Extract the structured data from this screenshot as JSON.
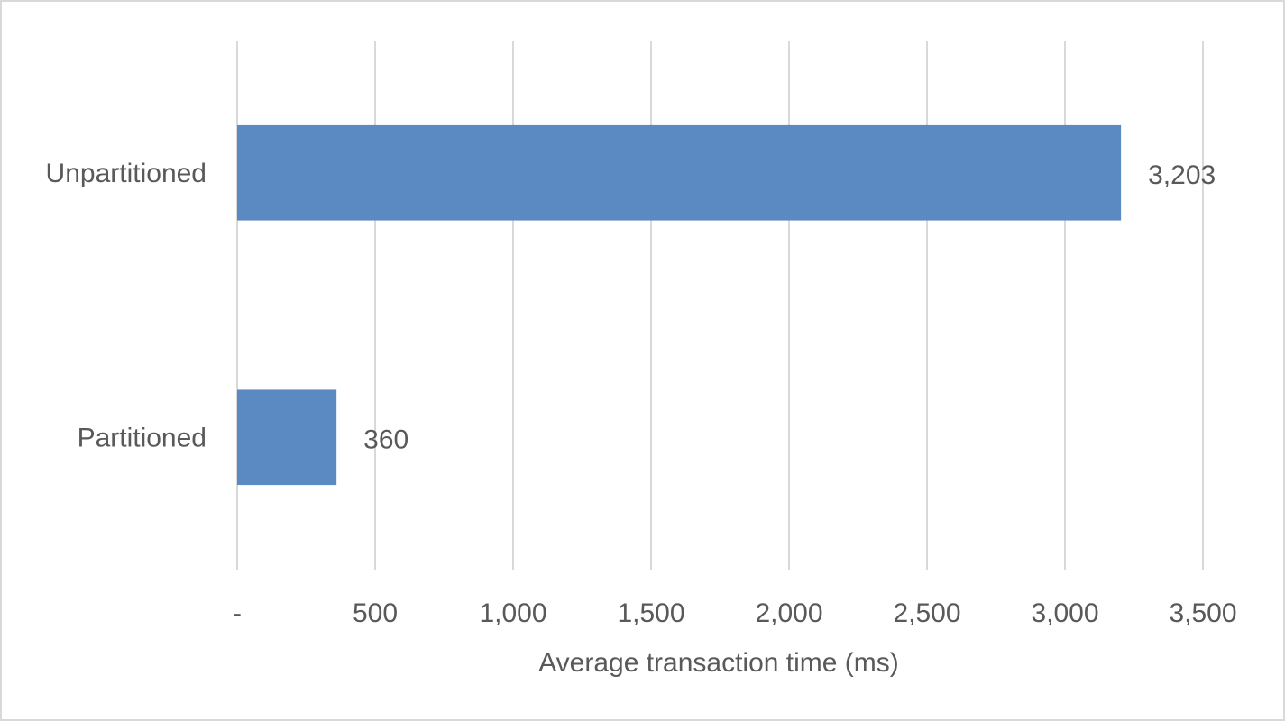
{
  "chart_data": {
    "type": "bar",
    "orientation": "horizontal",
    "categories": [
      "Unpartitioned",
      "Partitioned"
    ],
    "values": [
      3203,
      360
    ],
    "value_labels": [
      "3,203",
      "360"
    ],
    "title": "",
    "xlabel": "Average transaction time (ms)",
    "ylabel": "",
    "xlim": [
      0,
      3500
    ],
    "xticks": [
      0,
      500,
      1000,
      1500,
      2000,
      2500,
      3000,
      3500
    ],
    "xtick_labels": [
      "-",
      "500",
      "1,000",
      "1,500",
      "2,000",
      "2,500",
      "3,000",
      "3,500"
    ],
    "grid": true,
    "legend": "none",
    "bar_color": "#5b89c2",
    "grid_color": "#d9d9d9",
    "text_color": "#595959"
  }
}
